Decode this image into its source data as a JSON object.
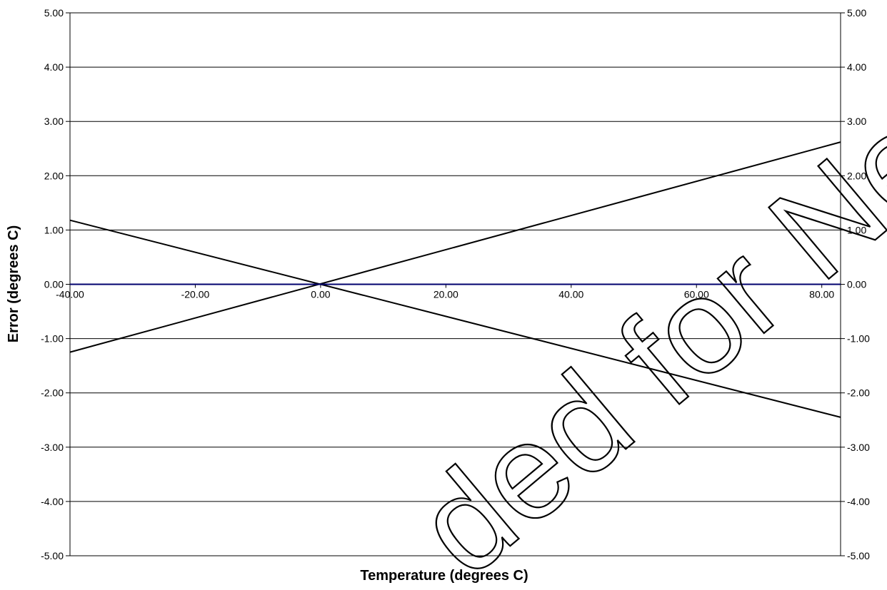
{
  "chart_data": {
    "type": "line",
    "title": "",
    "xlabel": "Temperature (degrees C)",
    "ylabel": "Error (degrees C)",
    "xlim": [
      -40,
      83
    ],
    "ylim": [
      -5,
      5
    ],
    "x_ticks": [
      -40,
      -20,
      0,
      20,
      40,
      60,
      80
    ],
    "x_tick_labels": [
      "-40.00",
      "-20.00",
      "0.00",
      "20.00",
      "40.00",
      "60.00",
      "80.00"
    ],
    "y_ticks": [
      5,
      4,
      3,
      2,
      1,
      0,
      -1,
      -2,
      -3,
      -4,
      -5
    ],
    "y_tick_labels": [
      "5.00",
      "4.00",
      "3.00",
      "2.00",
      "1.00",
      "0.00",
      "-1.00",
      "-2.00",
      "-3.00",
      "-4.00",
      "-5.00"
    ],
    "y2_tick_labels": [
      "5.00",
      "4.00",
      "3.00",
      "2.00",
      "1.00",
      "0.00",
      "-1.00",
      "-2.00",
      "-3.00",
      "-4.00",
      "-5.00"
    ],
    "grid": "horizontal",
    "legend": "none",
    "series": [
      {
        "color": "#000000",
        "x": [
          -40,
          83
        ],
        "y": [
          -1.25,
          2.62
        ]
      },
      {
        "color": "#000000",
        "x": [
          -40,
          83
        ],
        "y": [
          1.18,
          -2.45
        ]
      },
      {
        "color": "#00006e",
        "x": [
          -40,
          83
        ],
        "y": [
          0,
          0
        ]
      }
    ]
  },
  "watermark_text": "ded for New Desig"
}
